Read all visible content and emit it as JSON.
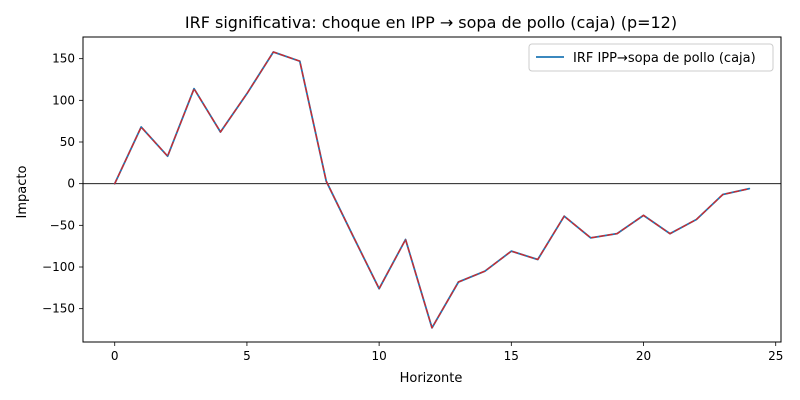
{
  "chart_data": {
    "type": "line",
    "title": "IRF significativa: choque en IPP → sopa de pollo (caja) (p=12)",
    "xlabel": "Horizonte",
    "ylabel": "Impacto",
    "xlim": [
      -1.2,
      25.2
    ],
    "ylim": [
      -190,
      176
    ],
    "xticks": [
      0,
      5,
      10,
      15,
      20,
      25
    ],
    "yticks": [
      -150,
      -100,
      -50,
      0,
      50,
      100,
      150
    ],
    "tick_labels_x": [
      "0",
      "5",
      "10",
      "15",
      "20",
      "25"
    ],
    "tick_labels_y": [
      "−150",
      "−100",
      "−50",
      "0",
      "50",
      "100",
      "150"
    ],
    "grid": false,
    "legend_position": "top-right",
    "zero_line": true,
    "x": [
      0,
      1,
      2,
      3,
      4,
      5,
      6,
      7,
      8,
      9,
      10,
      11,
      12,
      13,
      14,
      15,
      16,
      17,
      18,
      19,
      20,
      21,
      22,
      23,
      24
    ],
    "series": [
      {
        "name": "IRF IPP→sopa de pollo (caja)",
        "color": "#1f77b4",
        "style": "solid",
        "values": [
          0,
          68,
          33,
          114,
          62,
          108,
          158,
          147,
          3,
          -62,
          -126,
          -67,
          -173,
          -118,
          -105,
          -81,
          -91,
          -39,
          -65,
          -60,
          -38,
          -60,
          -43,
          -13,
          -6
        ]
      },
      {
        "color": "#d62728",
        "style": "dashed",
        "values": [
          0,
          68,
          33,
          114,
          62,
          108,
          158,
          147,
          3,
          -62,
          -126,
          -67,
          -173,
          -118,
          -105,
          -81,
          -91,
          -39,
          -65,
          -60,
          -38,
          -60,
          -43,
          -13,
          -6
        ]
      }
    ]
  }
}
